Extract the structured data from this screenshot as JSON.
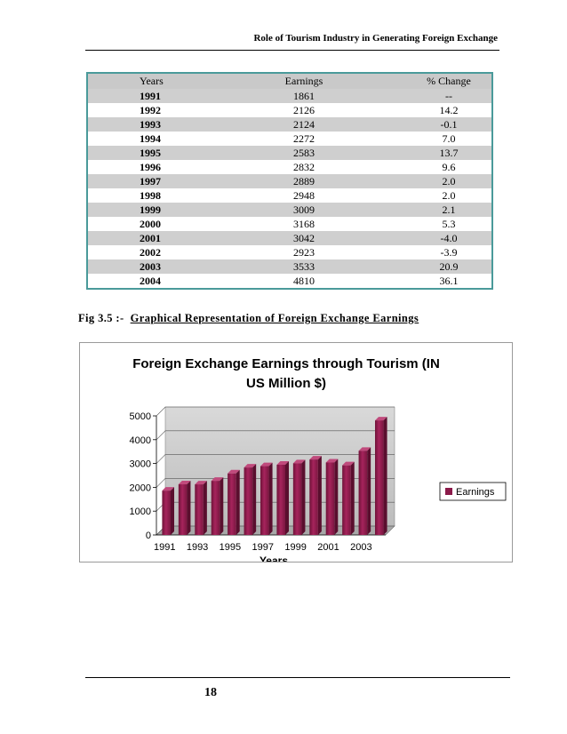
{
  "header": {
    "title": "Role of Tourism Industry in Generating Foreign Exchange"
  },
  "table": {
    "columns": [
      "Years",
      "Earnings",
      "% Change"
    ],
    "rows": [
      {
        "year": "1991",
        "earnings": "1861",
        "change": "--"
      },
      {
        "year": "1992",
        "earnings": "2126",
        "change": "14.2"
      },
      {
        "year": "1993",
        "earnings": "2124",
        "change": "-0.1"
      },
      {
        "year": "1994",
        "earnings": "2272",
        "change": "7.0"
      },
      {
        "year": "1995",
        "earnings": "2583",
        "change": "13.7"
      },
      {
        "year": "1996",
        "earnings": "2832",
        "change": "9.6"
      },
      {
        "year": "1997",
        "earnings": "2889",
        "change": "2.0"
      },
      {
        "year": "1998",
        "earnings": "2948",
        "change": "2.0"
      },
      {
        "year": "1999",
        "earnings": "3009",
        "change": "2.1"
      },
      {
        "year": "2000",
        "earnings": "3168",
        "change": "5.3"
      },
      {
        "year": "2001",
        "earnings": "3042",
        "change": "-4.0"
      },
      {
        "year": "2002",
        "earnings": "2923",
        "change": "-3.9"
      },
      {
        "year": "2003",
        "earnings": "3533",
        "change": "20.9"
      },
      {
        "year": "2004",
        "earnings": "4810",
        "change": "36.1"
      }
    ]
  },
  "figure": {
    "label": "Fig 3.5 :-",
    "caption": "Graphical Representation of Foreign Exchange Earnings"
  },
  "chart_data": {
    "type": "bar",
    "title_lines": [
      "Foreign Exchange Earnings through Tourism (IN",
      "US Million $)"
    ],
    "categories": [
      "1991",
      "1992",
      "1993",
      "1994",
      "1995",
      "1996",
      "1997",
      "1998",
      "1999",
      "2000",
      "2001",
      "2002",
      "2003",
      "2004"
    ],
    "x_tick_labels": [
      "1991",
      "1993",
      "1995",
      "1997",
      "1999",
      "2001",
      "2003"
    ],
    "series": [
      {
        "name": "Earnings",
        "color": "#8b1a4a",
        "values": [
          1861,
          2126,
          2124,
          2272,
          2583,
          2832,
          2889,
          2948,
          3009,
          3168,
          3042,
          2923,
          3533,
          4810
        ]
      }
    ],
    "xlabel": "Years",
    "ylabel": "",
    "ylim": [
      0,
      5000
    ],
    "y_ticks": [
      0,
      1000,
      2000,
      3000,
      4000,
      5000
    ],
    "grid": true,
    "legend_position": "right"
  },
  "page": {
    "number": "18"
  }
}
